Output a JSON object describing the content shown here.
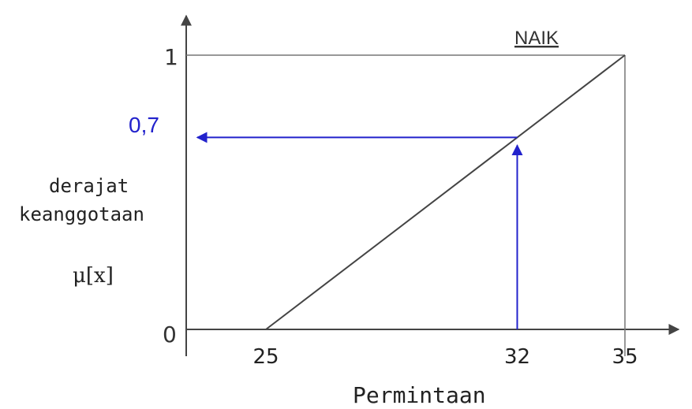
{
  "chart_data": {
    "type": "line",
    "series": [
      {
        "name": "NAIK",
        "points": [
          [
            25,
            0
          ],
          [
            35,
            1
          ]
        ]
      }
    ],
    "xlabel": "Permintaan",
    "ylabel_lines": [
      "derajat",
      "keanggotaan"
    ],
    "ylabel_symbol": "μ[x]",
    "x_ticks": [
      "25",
      "32",
      "35"
    ],
    "y_ticks": [
      "0",
      "1"
    ],
    "annotation": {
      "x": 32,
      "y": 0.7,
      "label": "0,7"
    },
    "colors": {
      "line": "#444444",
      "annotation": "#2222cc"
    }
  }
}
